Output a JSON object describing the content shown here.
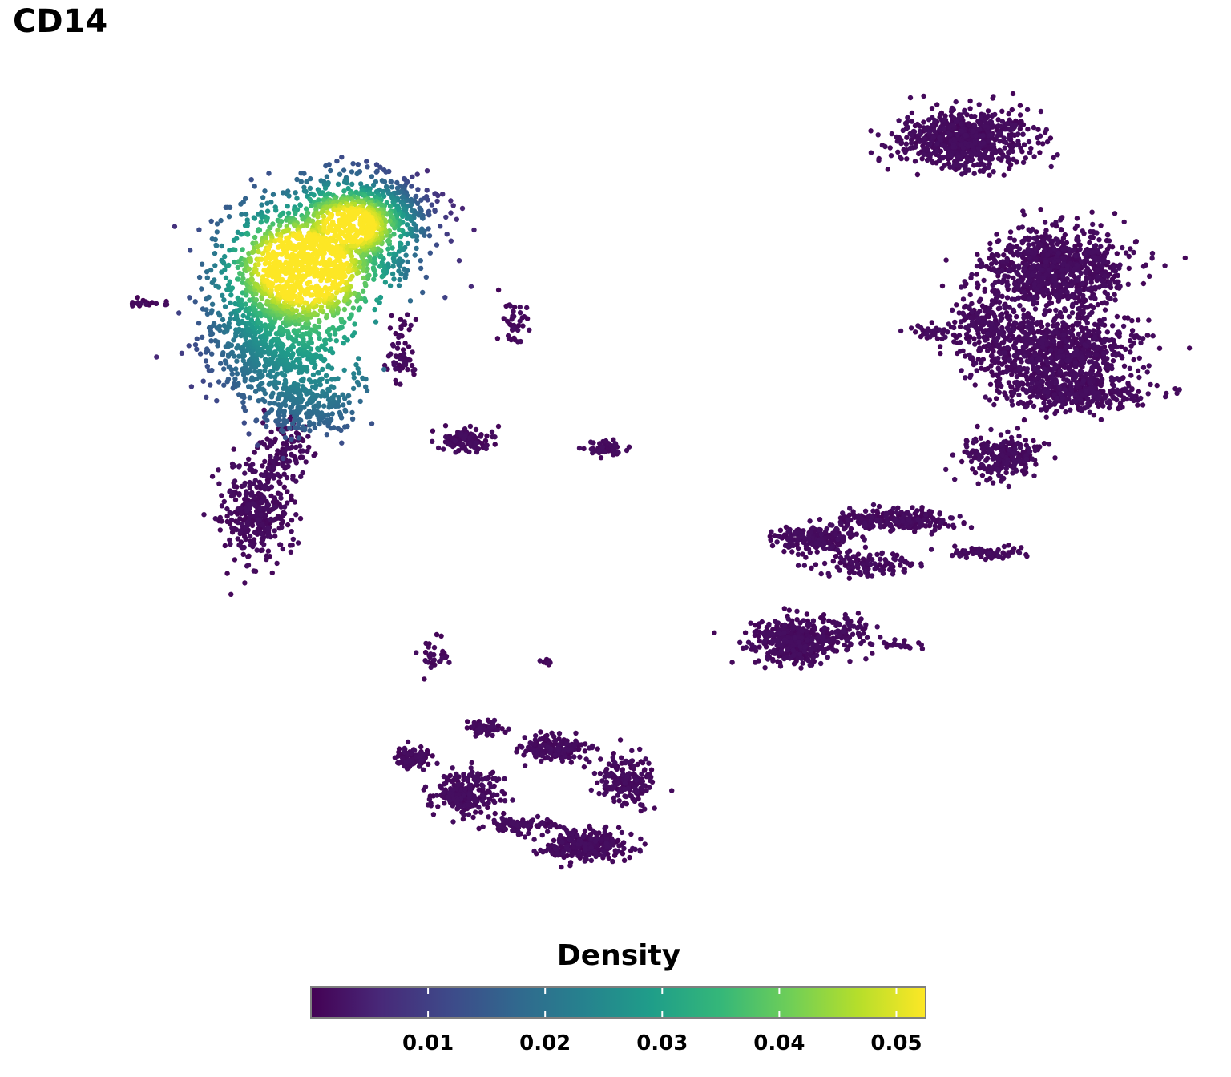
{
  "title": "CD14",
  "chart_data": {
    "type": "scatter",
    "title": "CD14",
    "xlabel": "",
    "ylabel": "",
    "grid": false,
    "color_variable": "Density",
    "colormap": "viridis",
    "legend": {
      "title": "Density",
      "placement": "bottom",
      "range": [
        0.0,
        0.0525
      ],
      "ticks": [
        0.01,
        0.02,
        0.03,
        0.04,
        0.05
      ],
      "tick_labels": [
        "0.01",
        "0.02",
        "0.03",
        "0.04",
        "0.05"
      ]
    },
    "clusters": [
      {
        "cluster": "top-left",
        "peak_density": 0.052
      },
      {
        "cluster": "top-right",
        "peak_density": 0.0
      }
    ]
  },
  "colors": {
    "viridis": [
      "#440154",
      "#482878",
      "#3e4989",
      "#31688e",
      "#26828e",
      "#1f9e89",
      "#35b779",
      "#6ece58",
      "#b5de2b",
      "#fde725"
    ]
  }
}
